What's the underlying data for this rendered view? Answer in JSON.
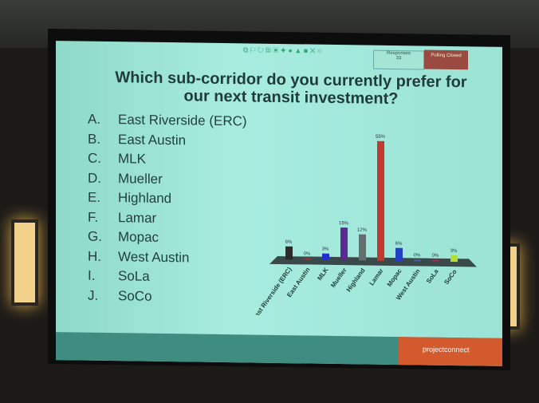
{
  "slide": {
    "title": "Which sub-corridor do you currently prefer for our next transit investment?",
    "responses_label": "Responses",
    "responses_count": "33",
    "poll_status": "Polling Closed",
    "options": [
      {
        "letter": "A.",
        "label": "East Riverside (ERC)"
      },
      {
        "letter": "B.",
        "label": "East Austin"
      },
      {
        "letter": "C.",
        "label": "MLK"
      },
      {
        "letter": "D.",
        "label": "Mueller"
      },
      {
        "letter": "E.",
        "label": "Highland"
      },
      {
        "letter": "F.",
        "label": "Lamar"
      },
      {
        "letter": "G.",
        "label": "Mopac"
      },
      {
        "letter": "H.",
        "label": "West Austin"
      },
      {
        "letter": "I.",
        "label": "SoLa"
      },
      {
        "letter": "J.",
        "label": "SoCo"
      }
    ],
    "brand": "projectconnect"
  },
  "chart_data": {
    "type": "bar",
    "categories": [
      "East Riverside (ERC)",
      "East Austin",
      "MLK",
      "Mueller",
      "Highland",
      "Lamar",
      "Mopac",
      "West Austin",
      "SoLa",
      "SoCo"
    ],
    "values": [
      6,
      0,
      3,
      15,
      12,
      55,
      6,
      0,
      0,
      3
    ],
    "value_labels": [
      "6%",
      "0%",
      "3%",
      "15%",
      "12%",
      "55%",
      "6%",
      "0%",
      "0%",
      "3%"
    ],
    "colors": [
      "#2b2b2b",
      "#a03030",
      "#2030d0",
      "#5a2a90",
      "#607070",
      "#c03a30",
      "#2040c0",
      "#4060a0",
      "#a03040",
      "#b0e030"
    ],
    "ylim": [
      0,
      55
    ]
  }
}
